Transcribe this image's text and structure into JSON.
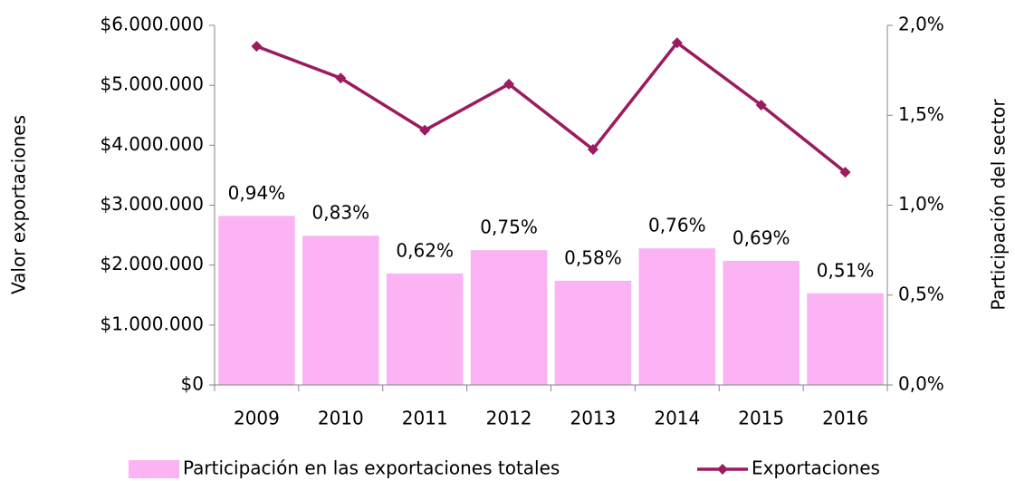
{
  "chart_data": {
    "type": "bar_line",
    "categories": [
      "2009",
      "2010",
      "2011",
      "2012",
      "2013",
      "2014",
      "2015",
      "2016"
    ],
    "series": [
      {
        "name": "Participación en las exportaciones totales",
        "type": "bar",
        "axis": "y2",
        "color": "#fbb3f4",
        "values": [
          0.94,
          0.83,
          0.62,
          0.75,
          0.58,
          0.76,
          0.69,
          0.51
        ],
        "value_labels": [
          "0,94%",
          "0,83%",
          "0,62%",
          "0,75%",
          "0,58%",
          "0,76%",
          "0,69%",
          "0,51%"
        ]
      },
      {
        "name": "Exportaciones",
        "type": "line",
        "axis": "y",
        "color": "#9c1a5f",
        "values": [
          5650000,
          5120000,
          4250000,
          5020000,
          3930000,
          5710000,
          4670000,
          3550000
        ]
      }
    ],
    "ylabel": "Valor exportaciones",
    "y2label": "Participación del sector",
    "ylim": [
      0,
      6000000
    ],
    "yticks": [
      {
        "value": 0,
        "label": "$0"
      },
      {
        "value": 1000000,
        "label": "$1.000.000"
      },
      {
        "value": 2000000,
        "label": "$2.000.000"
      },
      {
        "value": 3000000,
        "label": "$3.000.000"
      },
      {
        "value": 4000000,
        "label": "$4.000.000"
      },
      {
        "value": 5000000,
        "label": "$5.000.000"
      },
      {
        "value": 6000000,
        "label": "$6.000.000"
      }
    ],
    "y2lim": [
      0,
      2.0
    ],
    "y2ticks": [
      {
        "value": 0,
        "label": "0,0%"
      },
      {
        "value": 0.5,
        "label": "0,5%"
      },
      {
        "value": 1.0,
        "label": "1,0%"
      },
      {
        "value": 1.5,
        "label": "1,5%"
      },
      {
        "value": 2.0,
        "label": "2,0%"
      }
    ],
    "legend": "bottom"
  }
}
